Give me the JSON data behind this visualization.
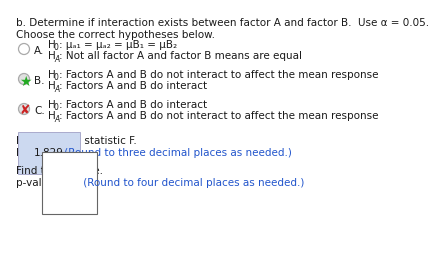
{
  "bg_color": "#ffffff",
  "text_color": "#1a1a1a",
  "blue_color": "#2255cc",
  "highlight_color": "#ccd9f0",
  "radio_color": "#aaaaaa",
  "star_color": "#22aa22",
  "cross_color": "#cc2222",
  "font_size": 7.5,
  "small_font": 5.5,
  "line1": "b. Determine if interaction exists between factor A and factor B.  Use α = 0.05.",
  "line2": "Choose the correct hypotheses below.",
  "A_label": "A.",
  "A_H0_pre": "H",
  "A_H0_sub": "0",
  "A_H0_post": ": μₐ₁ = μₐ₂ = μB₁ = μB₂",
  "A_HA_pre": "H",
  "A_HA_sub": "A",
  "A_HA_post": ": Not all factor A and factor B means are equal",
  "B_label": "B.",
  "B_H0_pre": "H",
  "B_H0_sub": "0",
  "B_H0_post": ": Factors A and B do not interact to affect the mean response",
  "B_HA_pre": "H",
  "B_HA_sub": "A",
  "B_HA_post": ": Factors A and B do interact",
  "C_label": "C.",
  "C_H0_pre": "H",
  "C_H0_sub": "0",
  "C_H0_post": ": Factors A and B do interact",
  "C_HA_pre": "H",
  "C_HA_sub": "A",
  "C_HA_post": ": Factors A and B do not interact to affect the mean response",
  "find_F": "Find the test statistic F.",
  "F_eq": "F = ",
  "F_val": "1.829",
  "F_note": " (Round to three decimal places as needed.)",
  "find_p": "Find the p-value.",
  "p_eq": "p-value = ",
  "p_note": " (Round to four decimal places as needed.)"
}
